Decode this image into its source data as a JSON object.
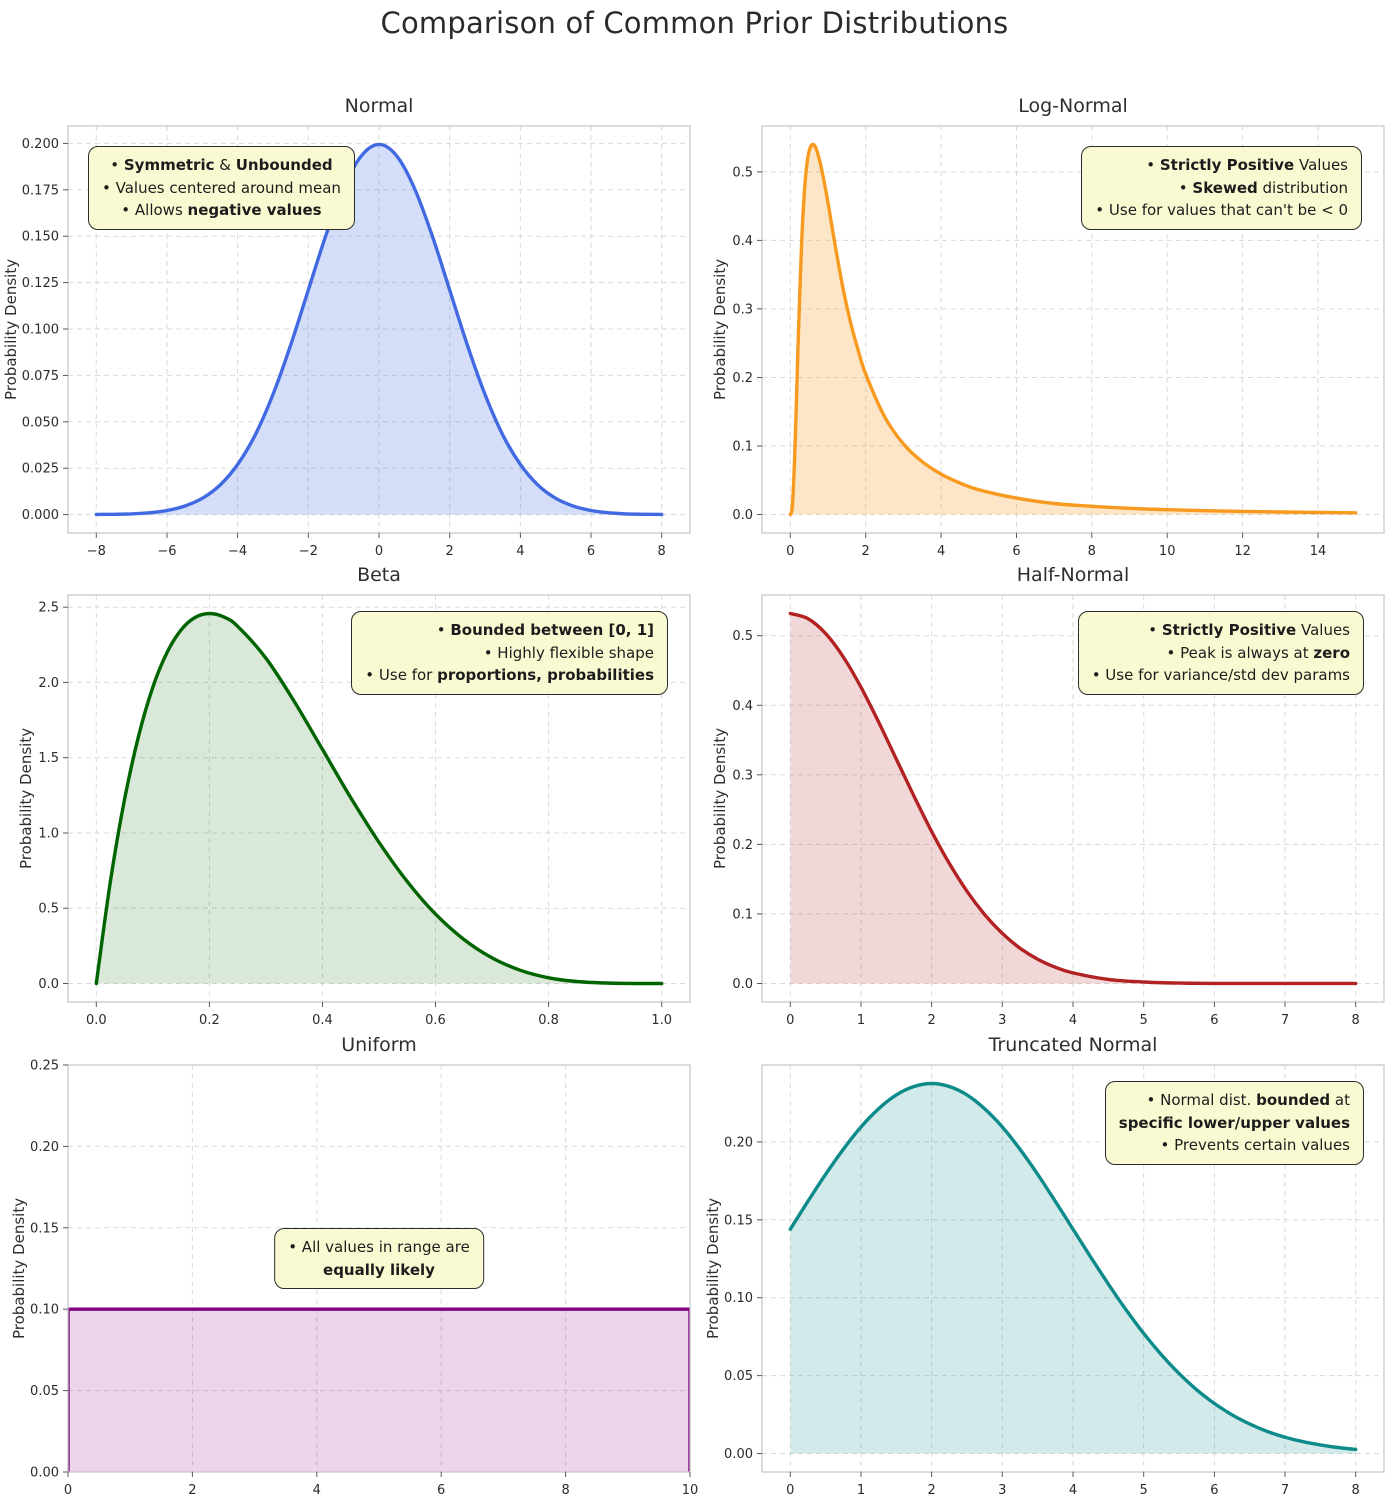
{
  "page": {
    "title": "Comparison of Common Prior Distributions"
  },
  "chart_data": [
    {
      "id": "normal",
      "type": "area",
      "title": "Normal",
      "ylabel": "Probability Density",
      "line_color": "#4169E1",
      "fill_color": "rgba(65,105,225,0.22)",
      "grid": true,
      "xlim": [
        -8.8,
        8.8
      ],
      "ylim": [
        -0.0099,
        0.2094
      ],
      "x_ticks": [
        -8,
        -6,
        -4,
        -2,
        0,
        2,
        4,
        6,
        8
      ],
      "x_tick_labels": [
        "−8",
        "−6",
        "−4",
        "−2",
        "0",
        "2",
        "4",
        "6",
        "8"
      ],
      "y_ticks": [
        0,
        0.025,
        0.05,
        0.075,
        0.1,
        0.125,
        0.15,
        0.175,
        0.2
      ],
      "y_tick_labels": [
        "0.000",
        "0.025",
        "0.050",
        "0.075",
        "0.100",
        "0.125",
        "0.150",
        "0.175",
        "0.200"
      ],
      "x": [
        -8,
        -7.5,
        -7,
        -6.5,
        -6,
        -5.5,
        -5,
        -4.5,
        -4,
        -3.5,
        -3,
        -2.5,
        -2,
        -1.5,
        -1,
        -0.5,
        0,
        0.5,
        1,
        1.5,
        2,
        2.5,
        3,
        3.5,
        4,
        4.5,
        5,
        5.5,
        6,
        6.5,
        7,
        7.5,
        8
      ],
      "y": [
        0.0001,
        0.0002,
        0.0004,
        0.001,
        0.0022,
        0.0046,
        0.0088,
        0.0159,
        0.027,
        0.043,
        0.0648,
        0.0913,
        0.121,
        0.1506,
        0.176,
        0.1933,
        0.1995,
        0.1933,
        0.176,
        0.1506,
        0.121,
        0.0913,
        0.0648,
        0.043,
        0.027,
        0.0159,
        0.0088,
        0.0046,
        0.0022,
        0.001,
        0.0004,
        0.0002,
        0.0001
      ],
      "annotation": {
        "align": "center",
        "pos": {
          "left": 20,
          "top": 20
        },
        "lines": [
          [
            {
              "t": "• ",
              "b": false
            },
            {
              "t": "Symmetric",
              "b": true
            },
            {
              "t": " & ",
              "b": false
            },
            {
              "t": "Unbounded",
              "b": true
            }
          ],
          [
            {
              "t": "• Values centered around mean",
              "b": false
            }
          ],
          [
            {
              "t": "• Allows ",
              "b": false
            },
            {
              "t": "negative values",
              "b": true
            }
          ]
        ]
      }
    },
    {
      "id": "log-normal",
      "type": "area",
      "title": "Log-Normal",
      "ylabel": "Probability Density",
      "line_color": "#F79A1F",
      "fill_color": "rgba(247,154,31,0.25)",
      "grid": true,
      "xlim": [
        -0.75,
        15.75
      ],
      "ylim": [
        -0.027,
        0.567
      ],
      "x_ticks": [
        0,
        2,
        4,
        6,
        8,
        10,
        12,
        14
      ],
      "x_tick_labels": [
        "0",
        "2",
        "4",
        "6",
        "8",
        "10",
        "12",
        "14"
      ],
      "y_ticks": [
        0,
        0.1,
        0.2,
        0.3,
        0.4,
        0.5
      ],
      "y_tick_labels": [
        "0.0",
        "0.1",
        "0.2",
        "0.3",
        "0.4",
        "0.5"
      ],
      "x": [
        0,
        0.05,
        0.1,
        0.15,
        0.2,
        0.25,
        0.3,
        0.35,
        0.4,
        0.45,
        0.5,
        0.55,
        0.6,
        0.65,
        0.7,
        0.8,
        0.9,
        1,
        1.2,
        1.4,
        1.6,
        1.8,
        2,
        2.5,
        3,
        3.5,
        4,
        4.5,
        5,
        6,
        7,
        8,
        9,
        10,
        11,
        12,
        13,
        14,
        15
      ],
      "y": [
        0,
        0.01,
        0.06,
        0.14,
        0.235,
        0.32,
        0.395,
        0.45,
        0.49,
        0.515,
        0.53,
        0.538,
        0.54,
        0.538,
        0.532,
        0.512,
        0.485,
        0.455,
        0.39,
        0.33,
        0.28,
        0.24,
        0.205,
        0.143,
        0.103,
        0.077,
        0.059,
        0.046,
        0.036,
        0.024,
        0.016,
        0.012,
        0.009,
        0.007,
        0.0055,
        0.0045,
        0.0037,
        0.003,
        0.0025
      ],
      "annotation": {
        "align": "right",
        "pos": {
          "right": 22,
          "top": 20
        },
        "lines": [
          [
            {
              "t": "• ",
              "b": false
            },
            {
              "t": "Strictly Positive",
              "b": true
            },
            {
              "t": " Values",
              "b": false
            }
          ],
          [
            {
              "t": "• ",
              "b": false
            },
            {
              "t": "Skewed",
              "b": true
            },
            {
              "t": " distribution",
              "b": false
            }
          ],
          [
            {
              "t": "• Use for values that can't be < 0",
              "b": false
            }
          ]
        ]
      }
    },
    {
      "id": "beta",
      "type": "area",
      "title": "Beta",
      "ylabel": "Probability Density",
      "line_color": "#006400",
      "fill_color": "rgba(0,100,0,0.15)",
      "grid": true,
      "xlim": [
        -0.05,
        1.05
      ],
      "ylim": [
        -0.1229,
        2.5809
      ],
      "x_ticks": [
        0,
        0.2,
        0.4,
        0.6,
        0.8,
        1
      ],
      "x_tick_labels": [
        "0.0",
        "0.2",
        "0.4",
        "0.6",
        "0.8",
        "1.0"
      ],
      "y_ticks": [
        0,
        0.5,
        1,
        1.5,
        2,
        2.5
      ],
      "y_tick_labels": [
        "0.0",
        "0.5",
        "1.0",
        "1.5",
        "2.0",
        "2.5"
      ],
      "x": [
        0,
        0.025,
        0.05,
        0.075,
        0.1,
        0.125,
        0.15,
        0.175,
        0.2,
        0.225,
        0.25,
        0.3,
        0.35,
        0.4,
        0.45,
        0.5,
        0.55,
        0.6,
        0.65,
        0.7,
        0.75,
        0.8,
        0.85,
        0.9,
        0.95,
        1
      ],
      "y": [
        0,
        0.678,
        1.222,
        1.647,
        1.968,
        2.198,
        2.349,
        2.432,
        2.458,
        2.436,
        2.373,
        2.161,
        1.874,
        1.555,
        1.235,
        0.938,
        0.677,
        0.461,
        0.293,
        0.17,
        0.088,
        0.038,
        0.013,
        0.003,
        0.0002,
        0
      ],
      "annotation": {
        "align": "right",
        "pos": {
          "right": 22,
          "top": 16
        },
        "lines": [
          [
            {
              "t": "• ",
              "b": false
            },
            {
              "t": "Bounded between [0, 1]",
              "b": true
            }
          ],
          [
            {
              "t": "• Highly flexible shape",
              "b": false
            }
          ],
          [
            {
              "t": "• Use for ",
              "b": false
            },
            {
              "t": "proportions, probabilities",
              "b": true
            }
          ]
        ]
      }
    },
    {
      "id": "half-normal",
      "type": "area",
      "title": "Half-Normal",
      "ylabel": "Probability Density",
      "line_color": "#B22222",
      "fill_color": "rgba(178,34,34,0.18)",
      "grid": true,
      "xlim": [
        -0.4,
        8.4
      ],
      "ylim": [
        -0.0266,
        0.5585
      ],
      "x_ticks": [
        0,
        1,
        2,
        3,
        4,
        5,
        6,
        7,
        8
      ],
      "x_tick_labels": [
        "0",
        "1",
        "2",
        "3",
        "4",
        "5",
        "6",
        "7",
        "8"
      ],
      "y_ticks": [
        0,
        0.1,
        0.2,
        0.3,
        0.4,
        0.5
      ],
      "y_tick_labels": [
        "0.0",
        "0.1",
        "0.2",
        "0.3",
        "0.4",
        "0.5"
      ],
      "x": [
        0,
        0.25,
        0.5,
        0.75,
        1,
        1.25,
        1.5,
        1.75,
        2,
        2.25,
        2.5,
        2.75,
        3,
        3.25,
        3.5,
        3.75,
        4,
        4.5,
        5,
        5.5,
        6,
        7,
        8
      ],
      "y": [
        0.5319,
        0.5246,
        0.5032,
        0.4694,
        0.4259,
        0.3759,
        0.3226,
        0.2693,
        0.2187,
        0.1727,
        0.1326,
        0.0991,
        0.072,
        0.0508,
        0.035,
        0.0234,
        0.0152,
        0.0059,
        0.0021,
        0.0006,
        0.0002,
        0.0001,
        0.0001
      ],
      "annotation": {
        "align": "right",
        "pos": {
          "right": 20,
          "top": 16
        },
        "lines": [
          [
            {
              "t": "• ",
              "b": false
            },
            {
              "t": "Strictly Positive",
              "b": true
            },
            {
              "t": " Values",
              "b": false
            }
          ],
          [
            {
              "t": "• Peak is always at ",
              "b": false
            },
            {
              "t": "zero",
              "b": true
            }
          ],
          [
            {
              "t": "• Use for variance/std dev params",
              "b": false
            }
          ]
        ]
      }
    },
    {
      "id": "uniform",
      "type": "area",
      "title": "Uniform",
      "ylabel": "Probability Density",
      "line_color": "#800080",
      "fill_color": "rgba(128,0,128,0.16)",
      "grid": true,
      "smooth": false,
      "xlim": [
        0,
        10
      ],
      "ylim": [
        0,
        0.25
      ],
      "x_ticks": [
        0,
        2,
        4,
        6,
        8,
        10
      ],
      "x_tick_labels": [
        "0",
        "2",
        "4",
        "6",
        "8",
        "10"
      ],
      "y_ticks": [
        0,
        0.05,
        0.1,
        0.15,
        0.2,
        0.25
      ],
      "y_tick_labels": [
        "0.00",
        "0.05",
        "0.10",
        "0.15",
        "0.20",
        "0.25"
      ],
      "x": [
        0,
        0,
        10,
        10
      ],
      "y": [
        0,
        0.1,
        0.1,
        0
      ],
      "annotation": {
        "align": "center",
        "pos": {
          "center": true,
          "top": 163
        },
        "lines": [
          [
            {
              "t": "• All values in range are",
              "b": false
            }
          ],
          [
            {
              "t": "equally likely",
              "b": true
            }
          ]
        ]
      }
    },
    {
      "id": "truncated-normal",
      "type": "area",
      "title": "Truncated Normal",
      "ylabel": "Probability Density",
      "line_color": "#0D8A8A",
      "fill_color": "rgba(13,138,138,0.18)",
      "grid": true,
      "xlim": [
        -0.4,
        8.4
      ],
      "ylim": [
        -0.0119,
        0.2494
      ],
      "x_ticks": [
        0,
        1,
        2,
        3,
        4,
        5,
        6,
        7,
        8
      ],
      "x_tick_labels": [
        "0",
        "1",
        "2",
        "3",
        "4",
        "5",
        "6",
        "7",
        "8"
      ],
      "y_ticks": [
        0,
        0.05,
        0.1,
        0.15,
        0.2
      ],
      "y_tick_labels": [
        "0.00",
        "0.05",
        "0.10",
        "0.15",
        "0.20"
      ],
      "x": [
        0,
        0.25,
        0.5,
        0.75,
        1,
        1.25,
        1.5,
        1.75,
        2,
        2.25,
        2.5,
        2.75,
        3,
        3.25,
        3.5,
        3.75,
        4,
        4.25,
        4.5,
        4.75,
        5,
        5.25,
        5.5,
        5.75,
        6,
        6.25,
        6.5,
        6.75,
        7,
        7.25,
        7.5,
        7.75,
        8
      ],
      "y": [
        0.144,
        0.1619,
        0.1792,
        0.1953,
        0.2096,
        0.2213,
        0.2302,
        0.2356,
        0.2375,
        0.2356,
        0.2302,
        0.2213,
        0.2096,
        0.1953,
        0.1792,
        0.1619,
        0.144,
        0.1261,
        0.1088,
        0.0923,
        0.0771,
        0.0634,
        0.0514,
        0.0409,
        0.0321,
        0.0248,
        0.0189,
        0.0141,
        0.0104,
        0.0076,
        0.0055,
        0.0038,
        0.0026
      ],
      "annotation": {
        "align": "right",
        "pos": {
          "right": 20,
          "top": 16
        },
        "lines": [
          [
            {
              "t": "• Normal dist. ",
              "b": false
            },
            {
              "t": "bounded",
              "b": true
            },
            {
              "t": " at",
              "b": false
            }
          ],
          [
            {
              "t": "specific lower/upper values",
              "b": true
            }
          ],
          [
            {
              "t": "• Prevents certain values",
              "b": false
            }
          ]
        ]
      }
    }
  ]
}
